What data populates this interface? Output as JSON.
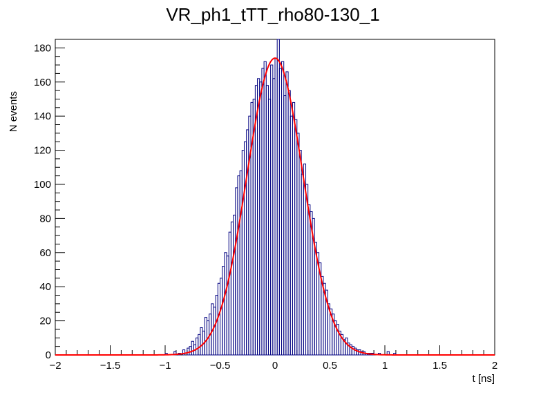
{
  "chart_data": {
    "type": "histogram",
    "title": "VR_ph1_tTT_rho80-130_1",
    "xlabel": "t [ns]",
    "ylabel": "N events",
    "xlim": [
      -2,
      2
    ],
    "ylim": [
      0,
      185
    ],
    "x_ticks": [
      -2,
      -1.5,
      -1,
      -0.5,
      0,
      0.5,
      1,
      1.5,
      2
    ],
    "x_tick_labels": [
      "−2",
      "−1.5",
      "−1",
      "−0.5",
      "0",
      "0.5",
      "1",
      "1.5",
      "2"
    ],
    "y_ticks": [
      0,
      20,
      40,
      60,
      80,
      100,
      120,
      140,
      160,
      180
    ],
    "y_tick_labels": [
      "0",
      "20",
      "40",
      "60",
      "80",
      "100",
      "120",
      "140",
      "160",
      "180"
    ],
    "grid": false,
    "histogram": {
      "name": "",
      "color": "#000080",
      "bin_width": 0.02,
      "bin_low_edges": [
        -1.0,
        -0.96,
        -0.92,
        -0.88,
        -0.84,
        -0.8,
        -0.78,
        -0.76,
        -0.74,
        -0.72,
        -0.7,
        -0.68,
        -0.66,
        -0.64,
        -0.62,
        -0.6,
        -0.58,
        -0.56,
        -0.54,
        -0.52,
        -0.5,
        -0.48,
        -0.46,
        -0.44,
        -0.42,
        -0.4,
        -0.38,
        -0.36,
        -0.34,
        -0.32,
        -0.3,
        -0.28,
        -0.26,
        -0.24,
        -0.22,
        -0.2,
        -0.18,
        -0.16,
        -0.14,
        -0.12,
        -0.1,
        -0.08,
        -0.06,
        -0.04,
        -0.02,
        0.0,
        0.02,
        0.04,
        0.06,
        0.08,
        0.1,
        0.12,
        0.14,
        0.16,
        0.18,
        0.2,
        0.22,
        0.24,
        0.26,
        0.28,
        0.3,
        0.32,
        0.34,
        0.36,
        0.38,
        0.4,
        0.42,
        0.44,
        0.46,
        0.48,
        0.5,
        0.52,
        0.54,
        0.56,
        0.58,
        0.6,
        0.62,
        0.64,
        0.66,
        0.68,
        0.7,
        0.72,
        0.74,
        0.76,
        0.78,
        0.8,
        0.82,
        0.84,
        0.86,
        0.88,
        0.9,
        0.94,
        0.98,
        1.02,
        1.08
      ],
      "counts": [
        1,
        0,
        2,
        1,
        3,
        4,
        5,
        8,
        6,
        10,
        12,
        16,
        14,
        22,
        20,
        24,
        30,
        28,
        35,
        42,
        45,
        52,
        60,
        58,
        72,
        78,
        82,
        98,
        105,
        108,
        120,
        125,
        132,
        140,
        148,
        150,
        158,
        162,
        160,
        168,
        172,
        158,
        150,
        170,
        162,
        174,
        185,
        168,
        172,
        152,
        166,
        155,
        140,
        148,
        138,
        130,
        120,
        106,
        112,
        100,
        88,
        84,
        80,
        66,
        60,
        54,
        46,
        42,
        38,
        30,
        27,
        24,
        20,
        18,
        14,
        12,
        9,
        10,
        7,
        6,
        5,
        4,
        3,
        3,
        2,
        2,
        1,
        1,
        1,
        1,
        0,
        1,
        0,
        2,
        1
      ]
    },
    "fit": {
      "name": "",
      "type": "gaussian",
      "color": "#ff0000",
      "amplitude": 174,
      "mean": 0.0,
      "sigma": 0.255
    }
  }
}
